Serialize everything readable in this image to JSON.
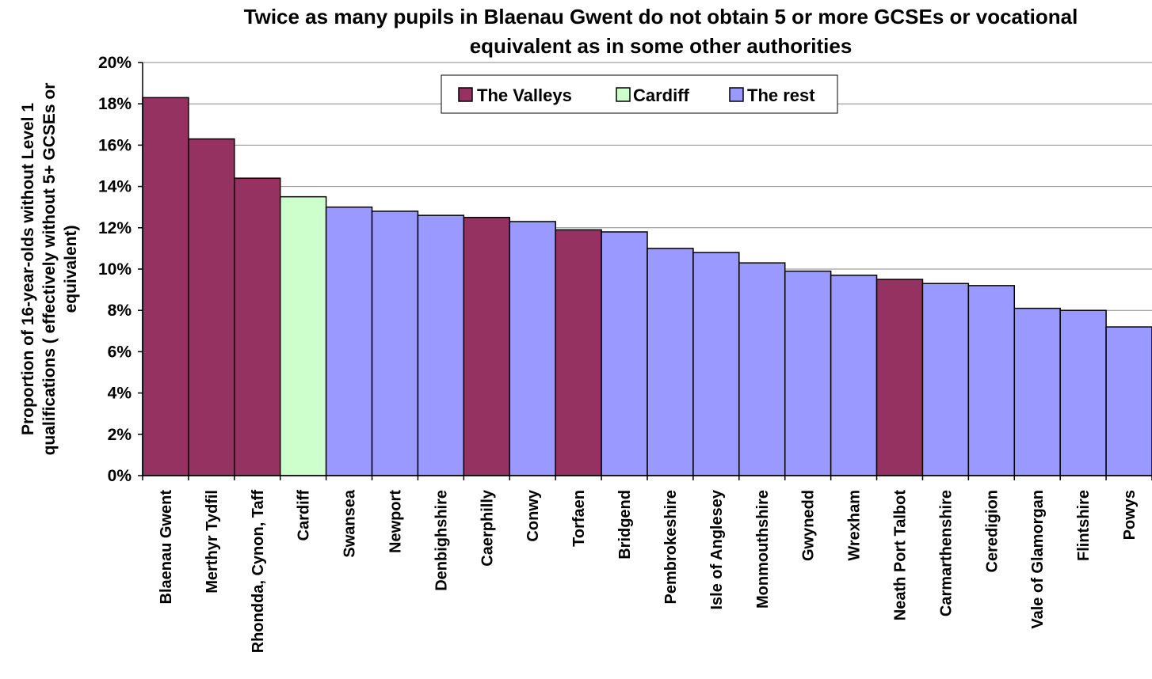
{
  "chart_data": {
    "type": "bar",
    "title": "Twice as many pupils in Blaenau Gwent do not obtain 5 or more GCSEs or vocational equivalent as in some other authorities",
    "title_lines": [
      "Twice as many pupils in Blaenau Gwent do not obtain 5 or more GCSEs or vocational",
      "equivalent as in some other authorities"
    ],
    "ylabel": "Proportion of 16-year-olds without Level 1 qualifications ( effectively without 5+ GCSEs or equivalent)",
    "ylabel_lines": [
      "Proportion of 16-year-olds without Level 1",
      "qualifications ( effectively without 5+ GCSEs or",
      "equivalent)"
    ],
    "xlabel": "",
    "ylim": [
      0,
      20
    ],
    "yticks": [
      "0%",
      "2%",
      "4%",
      "6%",
      "8%",
      "10%",
      "12%",
      "14%",
      "16%",
      "18%",
      "20%"
    ],
    "grid": "horizontal",
    "legend_position": "top-center",
    "legend": [
      {
        "name": "The Valleys",
        "color": "#953262"
      },
      {
        "name": "Cardiff",
        "color": "#ccffcc"
      },
      {
        "name": "The rest",
        "color": "#9999ff"
      }
    ],
    "categories": [
      "Blaenau Gwent",
      "Merthyr Tydfil",
      "Rhondda, Cynon, Taff",
      "Cardiff",
      "Swansea",
      "Newport",
      "Denbighshire",
      "Caerphilly",
      "Conwy",
      "Torfaen",
      "Bridgend",
      "Pembrokeshire",
      "Isle of Anglesey",
      "Monmouthshire",
      "Gwynedd",
      "Wrexham",
      "Neath Port Talbot",
      "Carmarthenshire",
      "Ceredigion",
      "Vale of Glamorgan",
      "Flintshire",
      "Powys"
    ],
    "values": [
      18.3,
      16.3,
      14.4,
      13.5,
      13.0,
      12.8,
      12.6,
      12.5,
      12.3,
      11.9,
      11.8,
      11.0,
      10.8,
      10.3,
      9.9,
      9.7,
      9.5,
      9.3,
      9.2,
      8.1,
      8.0,
      7.2
    ],
    "groups": [
      "The Valleys",
      "The Valleys",
      "The Valleys",
      "Cardiff",
      "The rest",
      "The rest",
      "The rest",
      "The Valleys",
      "The rest",
      "The Valleys",
      "The rest",
      "The rest",
      "The rest",
      "The rest",
      "The rest",
      "The rest",
      "The Valleys",
      "The rest",
      "The rest",
      "The rest",
      "The rest",
      "The rest"
    ]
  },
  "colors": {
    "grid": "#888888",
    "axis": "#000000",
    "bar_outline": "#000000"
  }
}
